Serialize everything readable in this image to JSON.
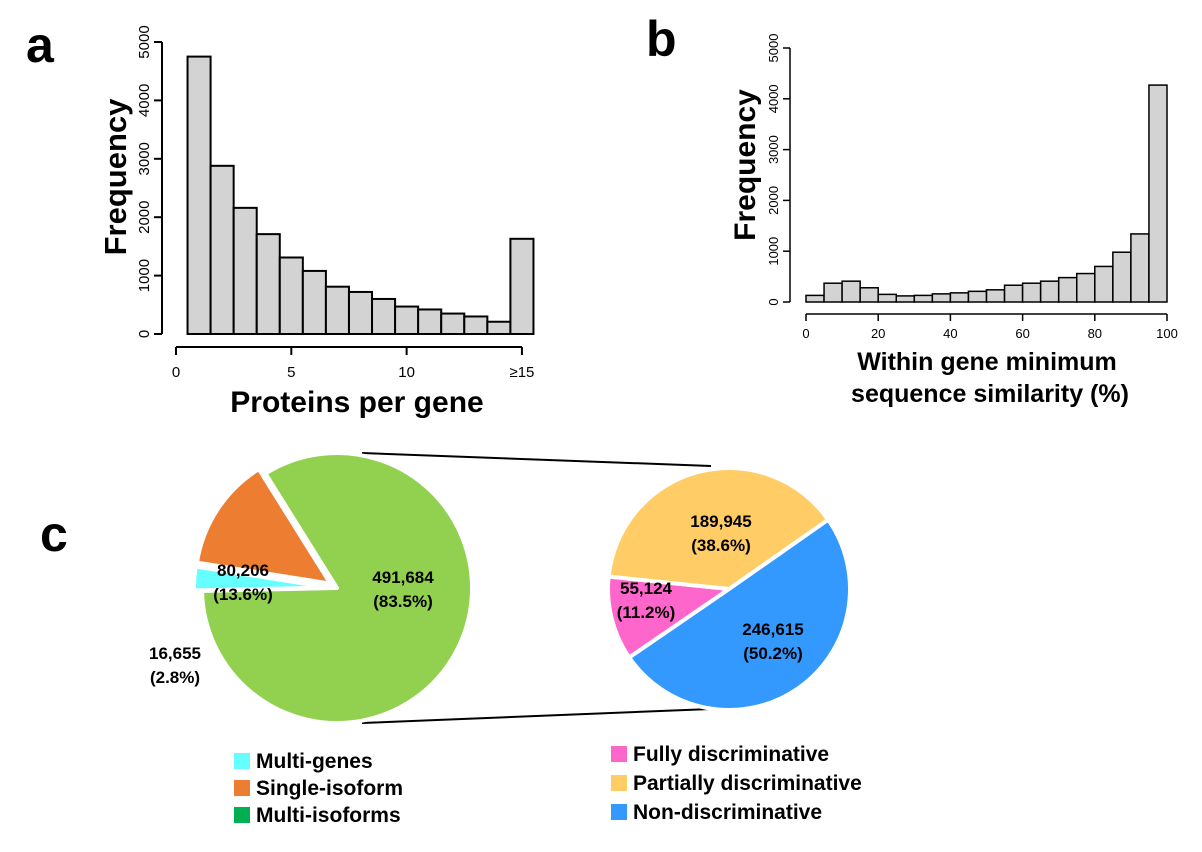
{
  "panels": {
    "a": "a",
    "b": "b",
    "c": "c"
  },
  "chart_data": [
    {
      "id": "a",
      "type": "bar",
      "xlabel": "Proteins per gene",
      "ylabel": "Frequency",
      "xlim": [
        0,
        16
      ],
      "ylim": [
        0,
        5000
      ],
      "yticks": [
        0,
        1000,
        2000,
        3000,
        4000,
        5000
      ],
      "xticks": [
        {
          "value": 0,
          "label": "0"
        },
        {
          "value": 5,
          "label": "5"
        },
        {
          "value": 10,
          "label": "10"
        },
        {
          "value": 15,
          "label": "≥15"
        }
      ],
      "bins": [
        [
          0.5,
          1.5
        ],
        [
          1.5,
          2.5
        ],
        [
          2.5,
          3.5
        ],
        [
          3.5,
          4.5
        ],
        [
          4.5,
          5.5
        ],
        [
          5.5,
          6.5
        ],
        [
          6.5,
          7.5
        ],
        [
          7.5,
          8.5
        ],
        [
          8.5,
          9.5
        ],
        [
          9.5,
          10.5
        ],
        [
          10.5,
          11.5
        ],
        [
          11.5,
          12.5
        ],
        [
          12.5,
          13.5
        ],
        [
          13.5,
          14.5
        ],
        [
          14.5,
          15.5
        ]
      ],
      "values": [
        4750,
        2880,
        2160,
        1710,
        1310,
        1080,
        810,
        720,
        600,
        470,
        420,
        350,
        300,
        210,
        1630
      ],
      "bar_color": "#d3d3d3"
    },
    {
      "id": "b",
      "type": "bar",
      "xlabel": "Within gene minimum sequence similarity (%)",
      "xlabel_lines": [
        "Within gene minimum",
        "sequence similarity (%)"
      ],
      "ylabel": "Frequency",
      "xlim": [
        0,
        100
      ],
      "ylim": [
        0,
        5000
      ],
      "yticks": [
        0,
        1000,
        2000,
        3000,
        4000,
        5000
      ],
      "xticks": [
        {
          "value": 0,
          "label": "0"
        },
        {
          "value": 20,
          "label": "20"
        },
        {
          "value": 40,
          "label": "40"
        },
        {
          "value": 60,
          "label": "60"
        },
        {
          "value": 80,
          "label": "80"
        },
        {
          "value": 100,
          "label": "100"
        }
      ],
      "bin_width": 5,
      "values": [
        130,
        370,
        410,
        280,
        150,
        120,
        130,
        160,
        180,
        210,
        240,
        330,
        370,
        410,
        480,
        560,
        700,
        980,
        1340,
        4270
      ],
      "bar_color": "#d3d3d3"
    },
    {
      "id": "c-left",
      "type": "pie",
      "slices": [
        {
          "name": "Multi-genes",
          "value": 16655,
          "label": "16,655",
          "pct": "(2.8%)",
          "color": "#66ffff"
        },
        {
          "name": "Single-isoform",
          "value": 80206,
          "label": "80,206",
          "pct": "(13.6%)",
          "color": "#ed7d31"
        },
        {
          "name": "Multi-isoforms",
          "value": 491684,
          "label": "491,684",
          "pct": "(83.5%)",
          "color": "#92d050"
        }
      ],
      "exploded": [
        "Multi-genes",
        "Single-isoform"
      ]
    },
    {
      "id": "c-right",
      "type": "pie",
      "slices": [
        {
          "name": "Fully discriminative",
          "value": 55124,
          "label": "55,124",
          "pct": "(11.2%)",
          "color": "#ff66cc"
        },
        {
          "name": "Partially discriminative",
          "value": 189945,
          "label": "189,945",
          "pct": "(38.6%)",
          "color": "#ffcc66"
        },
        {
          "name": "Non-discriminative",
          "value": 246615,
          "label": "246,615",
          "pct": "(50.2%)",
          "color": "#3399ff"
        }
      ]
    }
  ],
  "legend_left": [
    {
      "label": "Multi-genes",
      "color": "#66ffff"
    },
    {
      "label": "Single-isoform",
      "color": "#ed7d31"
    },
    {
      "label": "Multi-isoforms",
      "color": "#00b050"
    }
  ],
  "legend_right": [
    {
      "label": "Fully discriminative",
      "color": "#ff66cc"
    },
    {
      "label": "Partially discriminative",
      "color": "#ffcc66"
    },
    {
      "label": "Non-discriminative",
      "color": "#3399ff"
    }
  ]
}
